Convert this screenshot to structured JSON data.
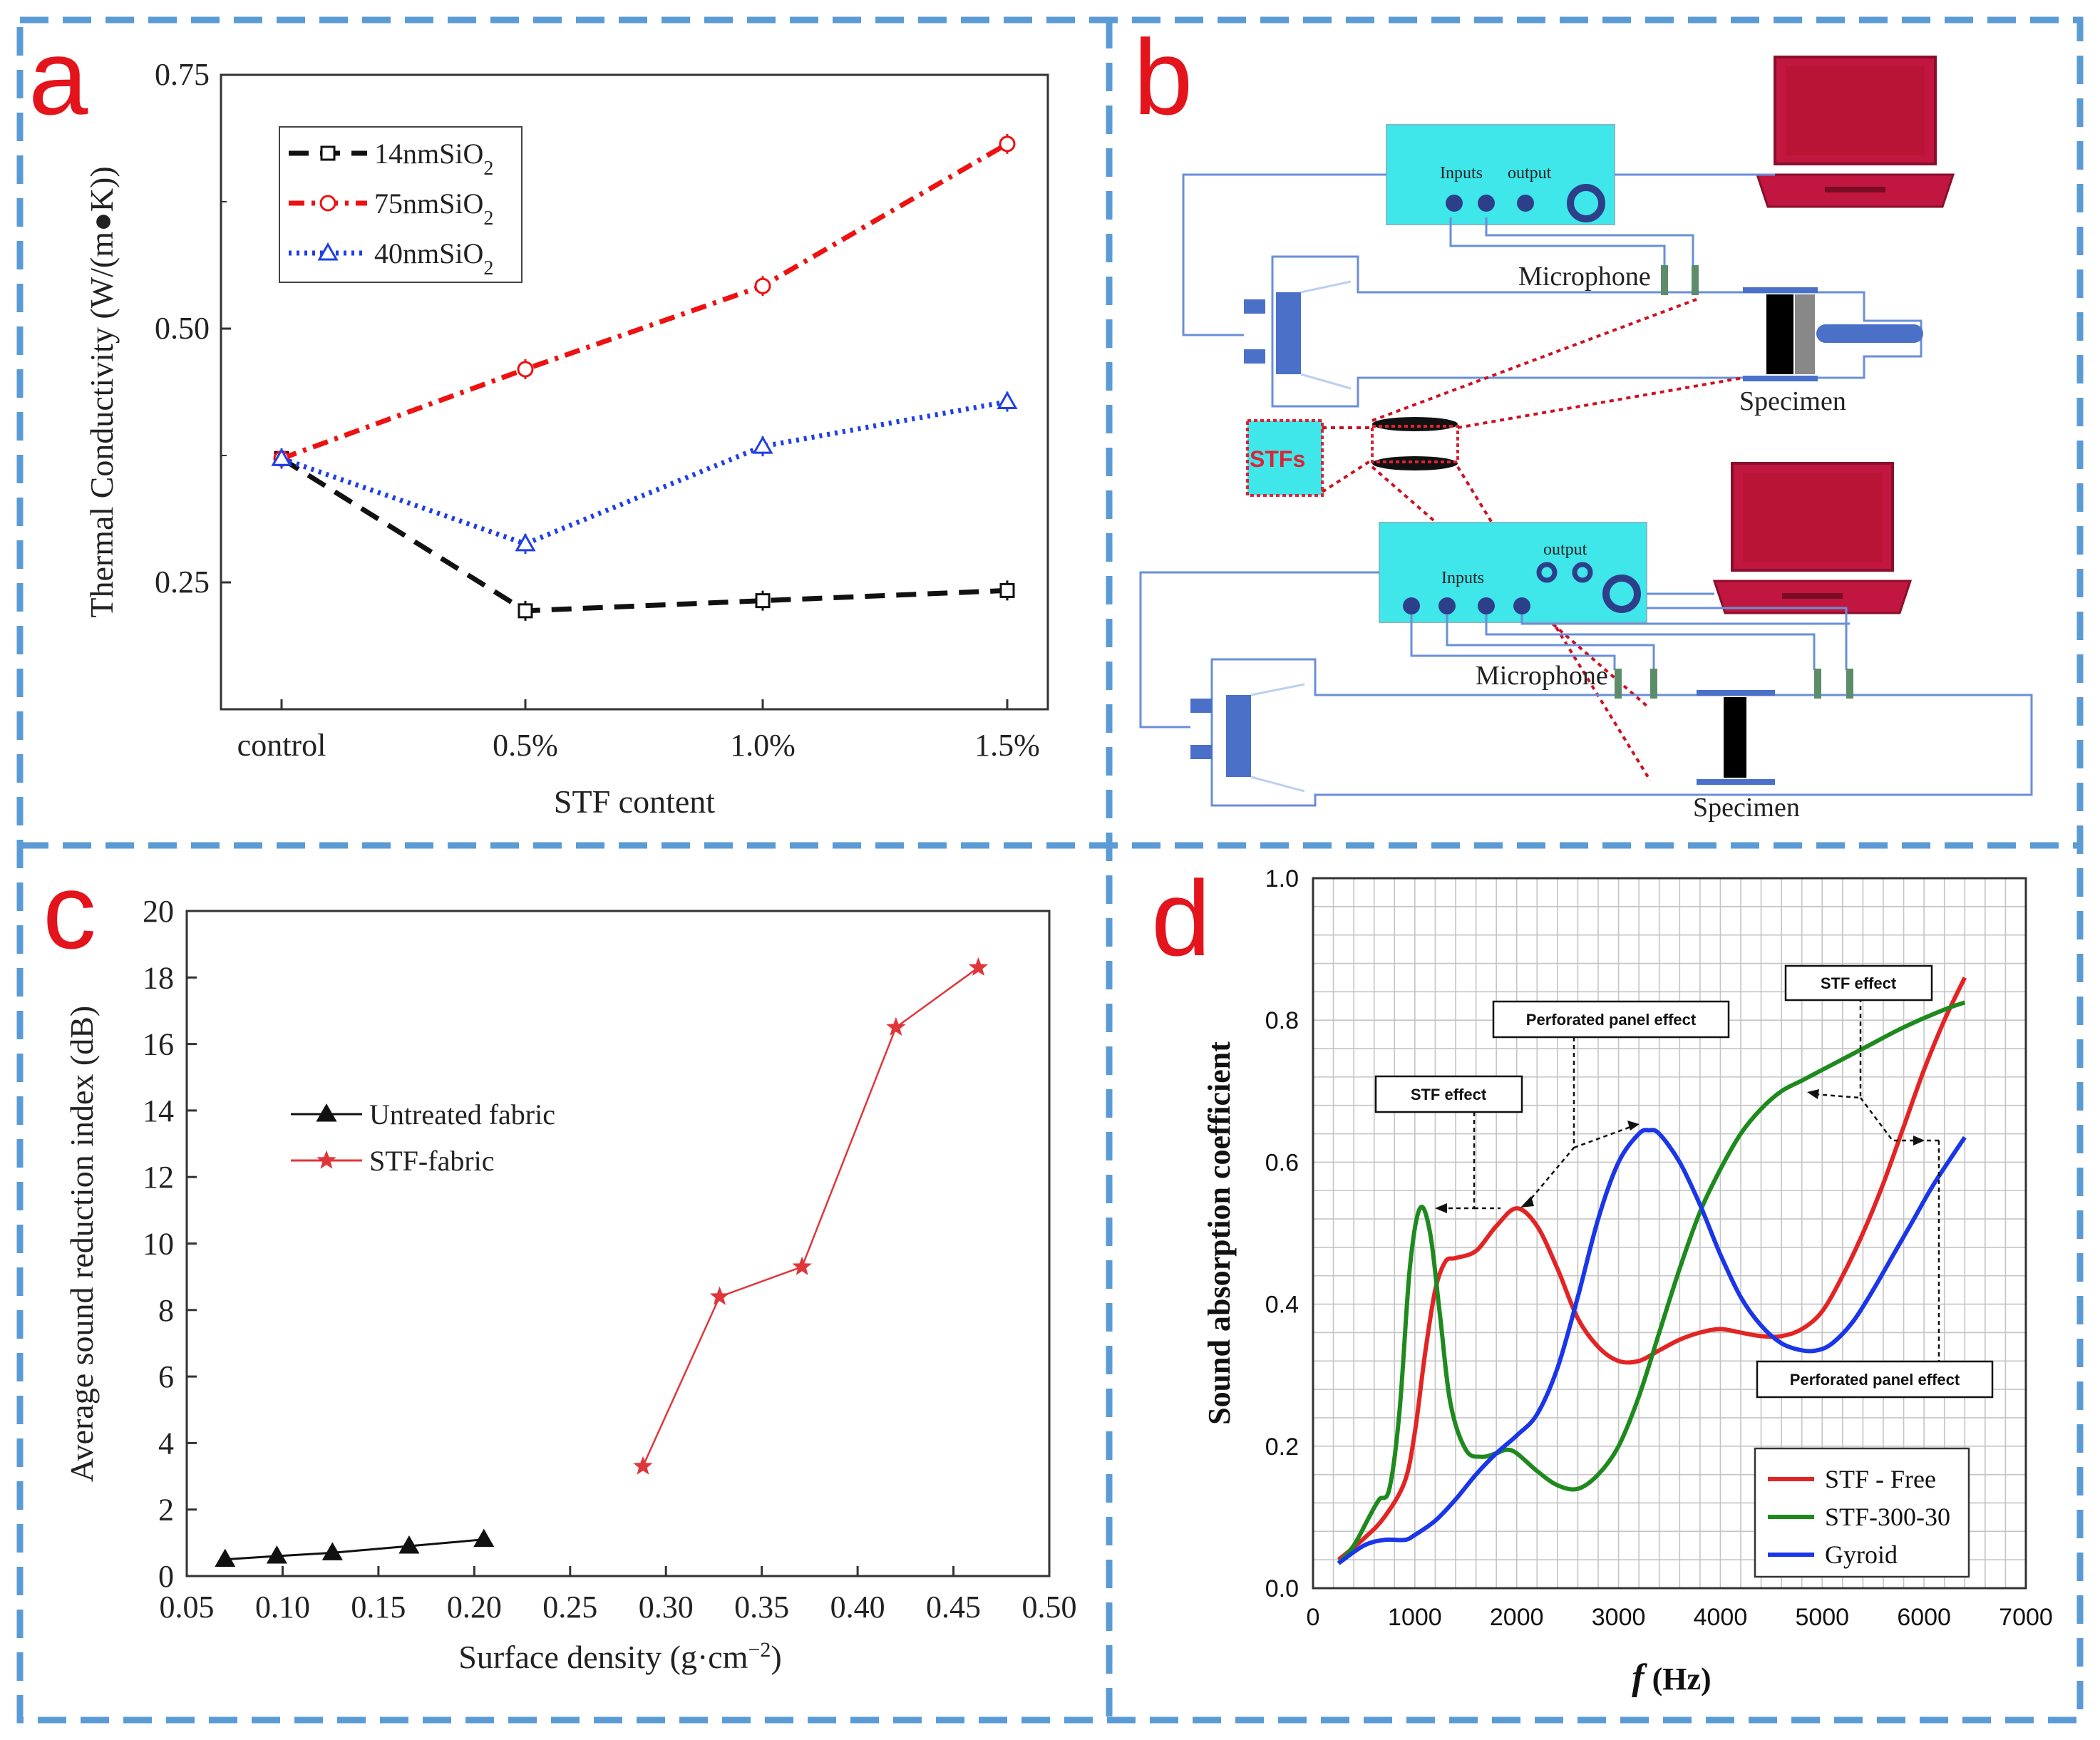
{
  "panels": {
    "a": "a",
    "b": "b",
    "c": "c",
    "d": "d"
  },
  "chart_data": [
    {
      "panel": "a",
      "type": "line",
      "title": "",
      "xlabel": "STF content",
      "ylabel": "Thermal Conductivity (W/(m●K))",
      "categories": [
        "control",
        "0.5%",
        "1.0%",
        "1.5%"
      ],
      "ylim": [
        0.125,
        0.75
      ],
      "yticks": [
        "0.25",
        "0.50",
        "0.75"
      ],
      "legend_position": "top-left",
      "series": [
        {
          "name": "14nmSiO",
          "sub": "2",
          "values": [
            0.372,
            0.222,
            0.232,
            0.242
          ],
          "color": "#111111",
          "style": "dashed",
          "marker": "square"
        },
        {
          "name": "75nmSiO",
          "sub": "2",
          "values": [
            0.372,
            0.46,
            0.542,
            0.682
          ],
          "color": "#ee1111",
          "style": "dashdot",
          "marker": "circle"
        },
        {
          "name": "40nmSiO",
          "sub": "2",
          "values": [
            0.372,
            0.288,
            0.384,
            0.428
          ],
          "color": "#1f3fe6",
          "style": "dotted",
          "marker": "triangle"
        }
      ]
    },
    {
      "panel": "c",
      "type": "line",
      "title": "",
      "xlabel": "Surface density (g·cm",
      "xlabel_sup": "−2",
      "xlabel_end": ")",
      "ylabel": "Average sound reduction index (dB)",
      "xlim": [
        0.05,
        0.5
      ],
      "ylim": [
        0,
        20
      ],
      "xticks": [
        "0.05",
        "0.10",
        "0.15",
        "0.20",
        "0.25",
        "0.30",
        "0.35",
        "0.40",
        "0.45",
        "0.50"
      ],
      "yticks": [
        "0",
        "2",
        "4",
        "6",
        "8",
        "10",
        "12",
        "14",
        "16",
        "18",
        "20"
      ],
      "legend_position": "center-left",
      "series": [
        {
          "name": "Untreated fabric",
          "color": "#111111",
          "marker": "triangle",
          "x": [
            0.07,
            0.097,
            0.126,
            0.166,
            0.205
          ],
          "y": [
            0.5,
            0.6,
            0.7,
            0.9,
            1.1
          ]
        },
        {
          "name": "STF-fabric",
          "color": "#e0363a",
          "marker": "star",
          "x": [
            0.288,
            0.328,
            0.371,
            0.42,
            0.463
          ],
          "y": [
            3.3,
            8.4,
            9.3,
            16.5,
            18.3
          ]
        }
      ]
    },
    {
      "panel": "d",
      "type": "line",
      "title": "",
      "xlabel": "f",
      "xlabel_unit": " (Hz)",
      "ylabel": "Sound absorption coefficient",
      "xlim": [
        0,
        7000
      ],
      "ylim": [
        0,
        1
      ],
      "xticks": [
        "0",
        "1000",
        "2000",
        "3000",
        "4000",
        "5000",
        "6000",
        "7000"
      ],
      "yticks": [
        "0.0",
        "0.2",
        "0.4",
        "0.6",
        "0.8",
        "1.0"
      ],
      "grid": true,
      "legend_position": "bottom-right",
      "series": [
        {
          "name": "STF - Free",
          "color": "#e32424",
          "x": [
            250,
            500,
            700,
            900,
            1000,
            1100,
            1200,
            1300,
            1400,
            1600,
            1800,
            2000,
            2200,
            2400,
            2600,
            2800,
            3000,
            3200,
            3400,
            3600,
            3800,
            4000,
            4200,
            4400,
            4600,
            4800,
            5000,
            5200,
            5400,
            5600,
            5800,
            6000,
            6200,
            6400
          ],
          "y": [
            0.04,
            0.07,
            0.1,
            0.15,
            0.22,
            0.33,
            0.42,
            0.46,
            0.465,
            0.475,
            0.51,
            0.535,
            0.51,
            0.45,
            0.38,
            0.34,
            0.32,
            0.32,
            0.335,
            0.35,
            0.36,
            0.365,
            0.36,
            0.355,
            0.355,
            0.365,
            0.39,
            0.44,
            0.5,
            0.57,
            0.65,
            0.73,
            0.8,
            0.86
          ]
        },
        {
          "name": "STF-300-30",
          "color": "#1e8a1e",
          "x": [
            250,
            400,
            550,
            650,
            750,
            850,
            950,
            1050,
            1150,
            1250,
            1350,
            1500,
            1650,
            1800,
            1900,
            2000,
            2200,
            2400,
            2600,
            2800,
            3000,
            3200,
            3400,
            3600,
            3800,
            4000,
            4200,
            4400,
            4600,
            4800,
            5000,
            5400,
            5800,
            6200,
            6400
          ],
          "y": [
            0.035,
            0.06,
            0.1,
            0.125,
            0.14,
            0.25,
            0.45,
            0.535,
            0.5,
            0.38,
            0.26,
            0.195,
            0.185,
            0.19,
            0.195,
            0.19,
            0.165,
            0.145,
            0.14,
            0.16,
            0.2,
            0.27,
            0.36,
            0.45,
            0.53,
            0.59,
            0.64,
            0.675,
            0.7,
            0.715,
            0.73,
            0.76,
            0.79,
            0.815,
            0.825
          ]
        },
        {
          "name": "Gyroid",
          "color": "#1a36e8",
          "x": [
            250,
            500,
            700,
            900,
            1000,
            1200,
            1400,
            1600,
            1800,
            2000,
            2200,
            2400,
            2600,
            2800,
            3000,
            3200,
            3300,
            3400,
            3600,
            3800,
            4000,
            4200,
            4400,
            4600,
            4800,
            4950,
            5100,
            5300,
            5500,
            5700,
            5900,
            6100,
            6400
          ],
          "y": [
            0.035,
            0.06,
            0.068,
            0.068,
            0.075,
            0.095,
            0.125,
            0.16,
            0.19,
            0.215,
            0.245,
            0.31,
            0.41,
            0.52,
            0.6,
            0.64,
            0.645,
            0.64,
            0.6,
            0.54,
            0.47,
            0.41,
            0.37,
            0.345,
            0.335,
            0.335,
            0.345,
            0.375,
            0.42,
            0.47,
            0.52,
            0.57,
            0.635
          ]
        }
      ],
      "annotations": [
        "STF effect",
        "Perforated panel effect",
        "STF effect",
        "Perforated panel effect"
      ]
    }
  ],
  "diagram_b": {
    "top_labels": {
      "inputs": "Inputs",
      "output": "output",
      "microphone": "Microphone",
      "specimen": "Specimen"
    },
    "sample_label": "STFs",
    "bottom_labels": {
      "inputs": "Inputs",
      "output": "output",
      "microphone": "Microphone",
      "specimen": "Specimen"
    }
  }
}
